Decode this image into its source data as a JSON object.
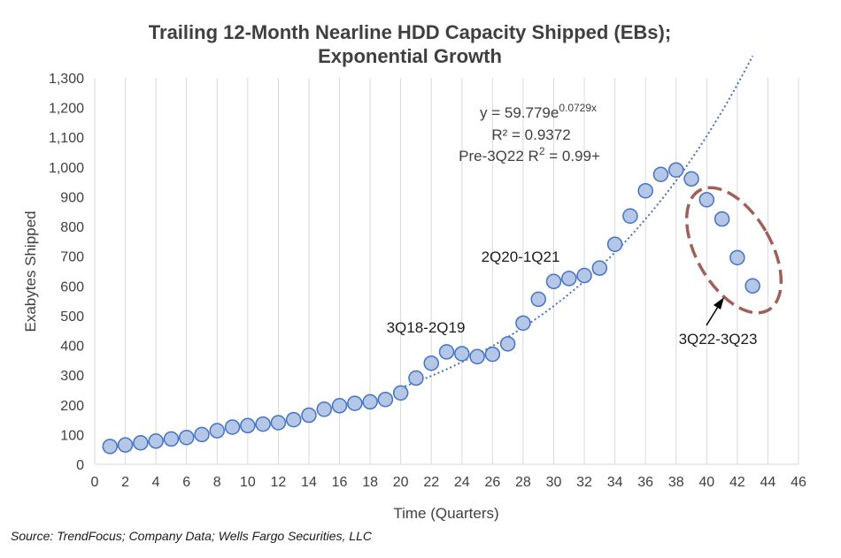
{
  "chart_data": {
    "type": "scatter",
    "title_line1": "Trailing 12-Month Nearline HDD Capacity Shipped (EBs);",
    "title_line2": "Exponential Growth",
    "xlabel": "Time (Quarters)",
    "ylabel": "Exabytes Shipped",
    "xlim": [
      0,
      46
    ],
    "ylim": [
      0,
      1300
    ],
    "x_ticks": [
      0,
      2,
      4,
      6,
      8,
      10,
      12,
      14,
      16,
      18,
      20,
      22,
      24,
      26,
      28,
      30,
      32,
      34,
      36,
      38,
      40,
      42,
      44,
      46
    ],
    "y_ticks": [
      0,
      100,
      200,
      300,
      400,
      500,
      600,
      700,
      800,
      900,
      1000,
      1100,
      1200,
      1300
    ],
    "y_tick_labels": [
      "0",
      "100",
      "200",
      "300",
      "400",
      "500",
      "600",
      "700",
      "800",
      "900",
      "1,000",
      "1,100",
      "1,200",
      "1,300"
    ],
    "grid": "vertical",
    "points": {
      "x": [
        1,
        2,
        3,
        4,
        5,
        6,
        7,
        8,
        9,
        10,
        11,
        12,
        13,
        14,
        15,
        16,
        17,
        18,
        19,
        20,
        21,
        22,
        23,
        24,
        25,
        26,
        27,
        28,
        29,
        30,
        31,
        32,
        33,
        34,
        35,
        36,
        37,
        38,
        39,
        40,
        41,
        42,
        43
      ],
      "y": [
        60,
        65,
        72,
        78,
        85,
        90,
        100,
        113,
        125,
        130,
        135,
        140,
        150,
        165,
        185,
        197,
        205,
        210,
        218,
        240,
        290,
        340,
        378,
        372,
        362,
        370,
        405,
        475,
        555,
        615,
        625,
        635,
        660,
        740,
        835,
        920,
        975,
        990,
        960,
        890,
        825,
        695,
        600
      ]
    },
    "trendline": {
      "type": "exponential",
      "a": 59.779,
      "b": 0.0729,
      "x_range": [
        20,
        43
      ]
    },
    "equation": {
      "lhs": "y = 59.779e",
      "exponent": "0.0729x"
    },
    "r_squared": "R² = 0.9372",
    "pre_r2": {
      "text": "Pre-3Q22  R",
      "sup": "2",
      "suffix": " = 0.99+"
    },
    "annotations": [
      "3Q18-2Q19",
      "2Q20-1Q21",
      "3Q22-3Q23"
    ],
    "colors": {
      "marker_fill": "#b4c7e7",
      "marker_stroke": "#4472c4",
      "trendline": "#4472c4",
      "highlight_ellipse": "#a0605a",
      "grid": "#d9d9d9",
      "text": "#3f3f3f"
    }
  },
  "source": "Source:  TrendFocus; Company Data; Wells Fargo Securities, LLC"
}
